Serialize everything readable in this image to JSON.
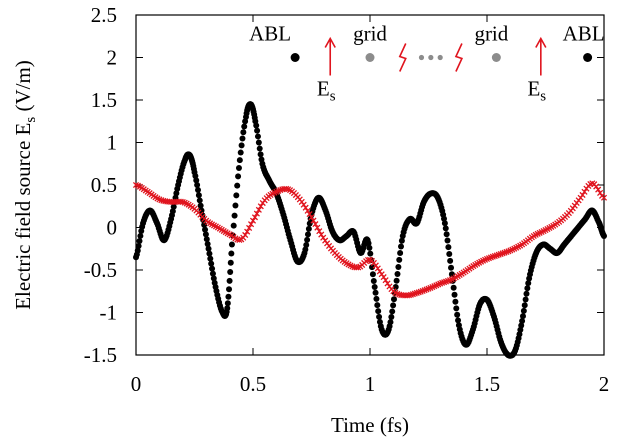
{
  "chart_data": {
    "type": "scatter",
    "xlabel": "Time (fs)",
    "ylabel_main": "Electric field source E",
    "ylabel_sub": "s",
    "ylabel_unit": " (V/m)",
    "xlim": [
      0,
      2
    ],
    "ylim": [
      -1.5,
      2.5
    ],
    "x_ticks": [
      0,
      0.5,
      1,
      1.5,
      2
    ],
    "x_tick_labels": [
      "0",
      "0.5",
      "1",
      "1.5",
      "2"
    ],
    "y_ticks": [
      -1.5,
      -1,
      -0.5,
      0,
      0.5,
      1,
      1.5,
      2,
      2.5
    ],
    "y_tick_labels": [
      "-1.5",
      "-1",
      "-0.5",
      "0",
      "0.5",
      "1",
      "1.5",
      "2",
      "2.5"
    ],
    "grid": false,
    "series": [
      {
        "color": "#000000",
        "marker": "circle",
        "x": [
          0,
          0.03,
          0.06,
          0.09,
          0.12,
          0.15,
          0.18,
          0.21,
          0.23,
          0.25,
          0.28,
          0.31,
          0.34,
          0.37,
          0.39,
          0.41,
          0.44,
          0.47,
          0.49,
          0.51,
          0.54,
          0.57,
          0.6,
          0.63,
          0.66,
          0.69,
          0.72,
          0.75,
          0.78,
          0.81,
          0.84,
          0.87,
          0.9,
          0.93,
          0.96,
          0.99,
          1.02,
          1.05,
          1.08,
          1.11,
          1.14,
          1.17,
          1.2,
          1.23,
          1.26,
          1.29,
          1.32,
          1.35,
          1.38,
          1.41,
          1.44,
          1.47,
          1.5,
          1.53,
          1.56,
          1.59,
          1.62,
          1.65,
          1.68,
          1.71,
          1.74,
          1.77,
          1.8,
          1.83,
          1.86,
          1.89,
          1.92,
          1.95,
          1.98,
          2.0
        ],
        "y": [
          -0.35,
          0.05,
          0.2,
          0.05,
          -0.15,
          0.1,
          0.5,
          0.8,
          0.85,
          0.65,
          0.2,
          -0.25,
          -0.7,
          -1.0,
          -0.95,
          -0.2,
          0.7,
          1.3,
          1.45,
          1.25,
          0.75,
          0.55,
          0.4,
          0.15,
          -0.15,
          -0.4,
          -0.3,
          0.15,
          0.35,
          0.2,
          -0.05,
          -0.15,
          -0.1,
          -0.05,
          -0.3,
          -0.15,
          -0.7,
          -1.2,
          -1.2,
          -0.7,
          -0.1,
          0.1,
          0.05,
          0.3,
          0.4,
          0.35,
          0.05,
          -0.55,
          -1.15,
          -1.38,
          -1.2,
          -0.9,
          -0.85,
          -1.05,
          -1.35,
          -1.5,
          -1.45,
          -1.1,
          -0.6,
          -0.3,
          -0.2,
          -0.25,
          -0.3,
          -0.2,
          -0.1,
          0.0,
          0.1,
          0.2,
          0.05,
          -0.1
        ]
      },
      {
        "color": "#e0141e",
        "marker": "cross",
        "x": [
          0,
          0.05,
          0.1,
          0.15,
          0.2,
          0.25,
          0.3,
          0.35,
          0.4,
          0.45,
          0.5,
          0.55,
          0.6,
          0.65,
          0.7,
          0.75,
          0.8,
          0.85,
          0.9,
          0.95,
          1.0,
          1.05,
          1.1,
          1.15,
          1.2,
          1.25,
          1.3,
          1.35,
          1.4,
          1.45,
          1.5,
          1.55,
          1.6,
          1.65,
          1.7,
          1.75,
          1.8,
          1.85,
          1.9,
          1.95,
          2.0
        ],
        "y": [
          0.5,
          0.42,
          0.33,
          0.3,
          0.3,
          0.22,
          0.08,
          0.0,
          -0.08,
          -0.14,
          0.08,
          0.32,
          0.42,
          0.45,
          0.33,
          0.12,
          -0.12,
          -0.3,
          -0.42,
          -0.47,
          -0.38,
          -0.55,
          -0.75,
          -0.8,
          -0.77,
          -0.72,
          -0.66,
          -0.61,
          -0.53,
          -0.44,
          -0.37,
          -0.32,
          -0.27,
          -0.2,
          -0.1,
          -0.03,
          0.05,
          0.17,
          0.35,
          0.52,
          0.35
        ]
      }
    ],
    "annotations": {
      "abl_label": "ABL",
      "grid_label": "grid",
      "es_main": "E",
      "es_sub": "s",
      "dots": "•••",
      "left_abl_dot_x": 0.68,
      "left_grid_dot_x": 1.0,
      "right_grid_dot_x": 1.54,
      "right_abl_dot_x": 1.93,
      "markers_y": 2.0,
      "left_source_x": 0.83,
      "right_source_x": 1.73
    }
  }
}
